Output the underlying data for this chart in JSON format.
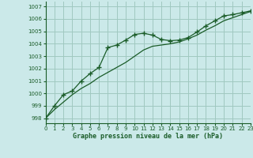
{
  "title": "Graphe pression niveau de la mer (hPa)",
  "bg_color": "#cbe9e9",
  "grid_color": "#a0c8c0",
  "line_color": "#1a5c28",
  "x_ticks": [
    0,
    1,
    2,
    3,
    4,
    5,
    6,
    7,
    8,
    9,
    10,
    11,
    12,
    13,
    14,
    15,
    16,
    17,
    18,
    19,
    20,
    21,
    22,
    23
  ],
  "y_ticks": [
    998,
    999,
    1000,
    1001,
    1002,
    1003,
    1004,
    1005,
    1006,
    1007
  ],
  "ylim": [
    997.6,
    1007.4
  ],
  "xlim": [
    0,
    23
  ],
  "series1_x": [
    0,
    1,
    2,
    3,
    4,
    5,
    6,
    7,
    8,
    9,
    10,
    11,
    12,
    13,
    14,
    15,
    16,
    17,
    18,
    19,
    20,
    21,
    22,
    23
  ],
  "series1_y": [
    998.0,
    999.0,
    999.9,
    1000.2,
    1001.0,
    1001.6,
    1002.1,
    1003.7,
    1003.9,
    1004.3,
    1004.75,
    1004.85,
    1004.7,
    1004.35,
    1004.25,
    1004.3,
    1004.5,
    1004.95,
    1005.45,
    1005.85,
    1006.25,
    1006.35,
    1006.5,
    1006.65
  ],
  "series2_x": [
    0,
    1,
    2,
    3,
    4,
    5,
    6,
    7,
    8,
    9,
    10,
    11,
    12,
    13,
    14,
    15,
    16,
    17,
    18,
    19,
    20,
    21,
    22,
    23
  ],
  "series2_y": [
    998.0,
    998.7,
    999.3,
    999.9,
    1000.4,
    1000.8,
    1001.3,
    1001.7,
    1002.1,
    1002.5,
    1003.0,
    1003.5,
    1003.8,
    1003.9,
    1004.0,
    1004.15,
    1004.4,
    1004.7,
    1005.1,
    1005.45,
    1005.85,
    1006.1,
    1006.35,
    1006.6
  ],
  "title_fontsize": 6.0,
  "tick_fontsize": 5.0
}
